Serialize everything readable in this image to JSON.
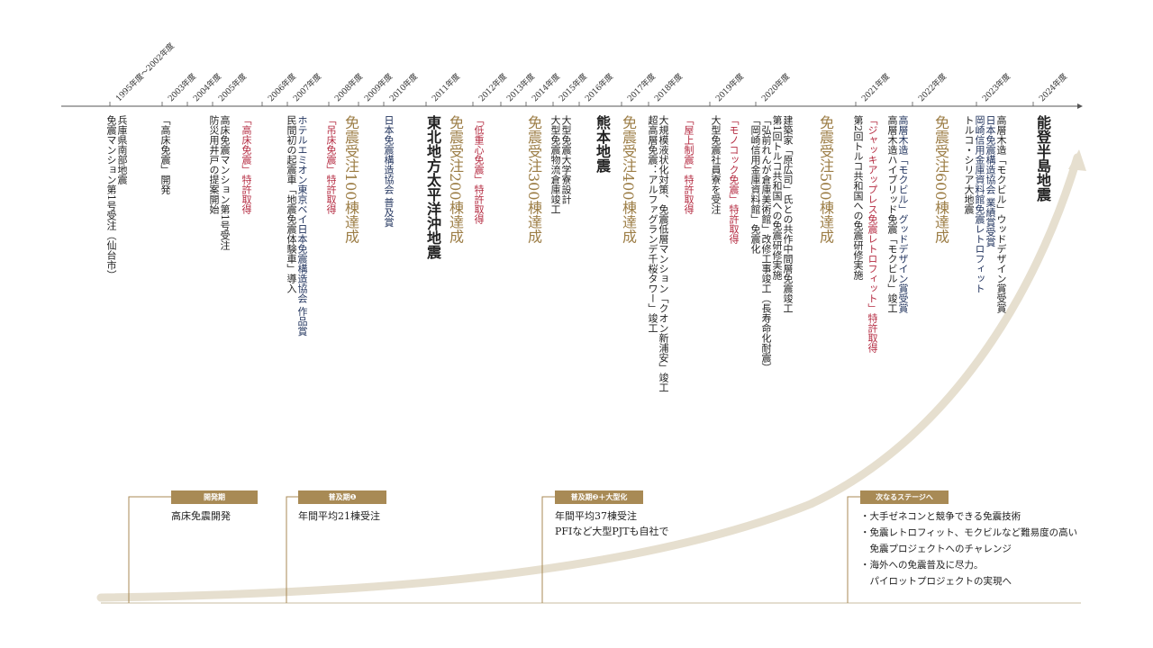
{
  "timeline": {
    "years": [
      "1995年度～2002年度",
      "2003年度",
      "2004年度",
      "2005年度",
      "2006年度",
      "2007年度",
      "2008年度",
      "2009年度",
      "2010年度",
      "2011年度",
      "2012年度",
      "2013年度",
      "2014年度",
      "2015年度",
      "2016年度",
      "2017年度",
      "2018年度",
      "2019年度",
      "2020年度",
      "2021年度",
      "2022年度",
      "2023年度",
      "2024年度"
    ]
  },
  "events": {
    "e1995": [
      "兵庫県南部地震",
      "免震マンション第1号受注（仙台市）"
    ],
    "e2003": [
      "「高床免震」開発"
    ],
    "e2005": [
      "防災用井戸の提案開始",
      "高床免震マンション第1号受注"
    ],
    "e2006": [
      "「高床免震」特許取得"
    ],
    "e2007": [
      "民間初の起震車「地震免震体験車」導入",
      "ホテルエミオン東京ベイ日本免震構造協会 作品賞"
    ],
    "e2008_red": "「吊床免震」特許取得",
    "e2008_gold": "免震受注100棟達成",
    "e2010": [
      "日本免震構造協会 普及賞"
    ],
    "e2011": "東北地方太平洋沖地震",
    "e2012_red": "「低重心免震」特許取得",
    "e2012_gold": "免震受注200棟達成",
    "e2014_gold": "免震受注300棟達成",
    "e2015": [
      "大型免震物流倉庫竣工",
      "大型免震大学寮設計"
    ],
    "e2016": "熊本地震",
    "e2017_gold": "免震受注400棟達成",
    "e2018_red": "「屋上制震」特許取得",
    "e2018": [
      "超高層免震：アルファグランデ千桜タワー」竣工",
      "大規模液状化対策、免震低層マンション「クオン新浦安」竣工"
    ],
    "e2019_red": "「モノコック免震」特許取得",
    "e2019": [
      "大型免震社員寮を受注"
    ],
    "e2020": [
      "「岡崎信用金庫資料館」免震化",
      "「弘前れんが倉庫美術館」改修工事竣工（長寿命化耐震）",
      "第1回トルコ共和国への免震研修実施",
      "建築家「原広司」氏との共作中間層免震竣工"
    ],
    "e2021_gold": "免震受注500棟達成",
    "e2021": [
      "第2回トルコ共和国への免震研修実施"
    ],
    "e2021_red": "「ジャッキアップレス免震レトロフィット」特許取得",
    "e2022": [
      "高層木造ハイブリッド免震「モクビル」竣工",
      "高層木造「モクビル」グッドデザイン賞受賞"
    ],
    "e2022_gold": "免震受注600棟達成",
    "e2023": [
      "トルコ・シリア大地震",
      "岡崎信用金庫資料館免震レトロフィット",
      "日本免震構造協会 業績賞受賞",
      "高層木造「モクビル」ウッドデザイン賞受賞"
    ],
    "e2024": "能登半島地震"
  },
  "phases": [
    {
      "label": "開発期",
      "lines": [
        "高床免震開発"
      ]
    },
    {
      "label": "普及期❶",
      "lines": [
        "年間平均21棟受注"
      ]
    },
    {
      "label": "普及期❷＋大型化",
      "lines": [
        "年間平均37棟受注",
        "PFIなど大型PJTも自社で"
      ]
    },
    {
      "label": "次なるステージへ",
      "lines": [
        "・大手ゼネコンと競争できる免震技術",
        "・免震レトロフィット、モクビルなど難易度の高い",
        "　免震プロジェクトへのチャレンジ",
        "・海外への免震普及に尽力。",
        "　パイロットプロジェクトの実現へ"
      ]
    }
  ],
  "colors": {
    "gold": "#9c7d45",
    "red": "#b42a40",
    "navy": "#22345e",
    "curve": "#e6dfcf",
    "axis": "#555555"
  }
}
